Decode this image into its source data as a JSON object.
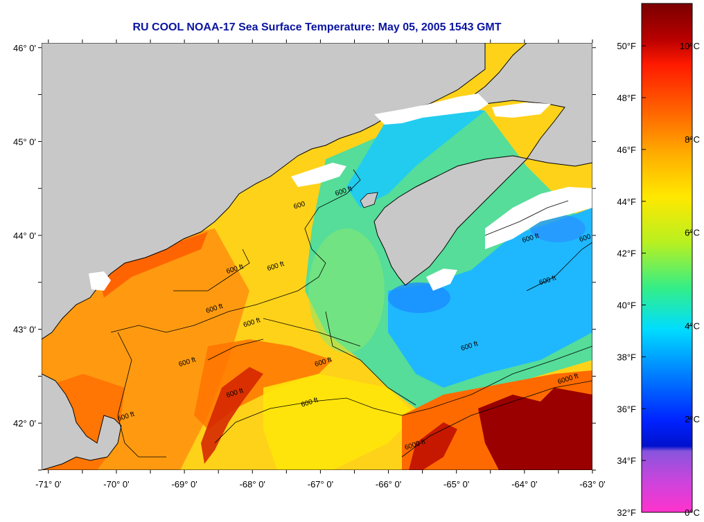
{
  "title": "RU COOL  NOAA-17  Sea Surface Temperature:  May 05, 2005 1543 GMT",
  "map": {
    "lon_range": [
      -71.1,
      -63.0
    ],
    "lat_range": [
      41.5,
      46.05
    ],
    "lon_ticks": [
      {
        "value": -71,
        "label": "-71° 0'"
      },
      {
        "value": -70,
        "label": "-70° 0'"
      },
      {
        "value": -69,
        "label": "-69° 0'"
      },
      {
        "value": -68,
        "label": "-68° 0'"
      },
      {
        "value": -67,
        "label": "-67° 0'"
      },
      {
        "value": -66,
        "label": "-66° 0'"
      },
      {
        "value": -65,
        "label": "-65° 0'"
      },
      {
        "value": -64,
        "label": "-64° 0'"
      },
      {
        "value": -63,
        "label": "-63° 0'"
      }
    ],
    "lat_ticks": [
      {
        "value": 46,
        "label": "46° 0'"
      },
      {
        "value": 45,
        "label": "45° 0'"
      },
      {
        "value": 44,
        "label": "44° 0'"
      },
      {
        "value": 43,
        "label": "43° 0'"
      },
      {
        "value": 42,
        "label": "42° 0'"
      }
    ],
    "contour_labels": [
      {
        "text": "600 ft",
        "lon": -68.25,
        "lat": 43.62
      },
      {
        "text": "600 ft",
        "lon": -68.55,
        "lat": 43.2
      },
      {
        "text": "600 ft",
        "lon": -68.95,
        "lat": 42.63
      },
      {
        "text": "600 ft",
        "lon": -67.65,
        "lat": 43.65
      },
      {
        "text": "600 ft",
        "lon": -68.0,
        "lat": 43.05
      },
      {
        "text": "600 ft",
        "lon": -66.95,
        "lat": 42.63
      },
      {
        "text": "600 ft",
        "lon": -67.15,
        "lat": 42.2
      },
      {
        "text": "600 ft",
        "lon": -66.65,
        "lat": 44.45
      },
      {
        "text": "600 ft",
        "lon": -64.8,
        "lat": 42.8
      },
      {
        "text": "600 ft",
        "lon": -63.65,
        "lat": 43.5
      },
      {
        "text": "600 ft",
        "lon": -63.9,
        "lat": 43.95
      },
      {
        "text": "600",
        "lon": -67.3,
        "lat": 44.3
      },
      {
        "text": "600",
        "lon": -63.1,
        "lat": 43.95
      },
      {
        "text": "600 ft",
        "lon": -68.25,
        "lat": 42.3
      },
      {
        "text": "600 ft",
        "lon": -69.85,
        "lat": 42.05
      },
      {
        "text": "6000 ft",
        "lon": -63.35,
        "lat": 42.45
      },
      {
        "text": "6000 ft",
        "lon": -65.6,
        "lat": 41.75
      }
    ]
  },
  "colorbar": {
    "fahrenheit_labels": [
      {
        "label": "50°F",
        "value_f": 50
      },
      {
        "label": "48°F",
        "value_f": 48
      },
      {
        "label": "46°F",
        "value_f": 46
      },
      {
        "label": "44°F",
        "value_f": 44
      },
      {
        "label": "42°F",
        "value_f": 42
      },
      {
        "label": "40°F",
        "value_f": 40
      },
      {
        "label": "38°F",
        "value_f": 38
      },
      {
        "label": "36°F",
        "value_f": 36
      },
      {
        "label": "34°F",
        "value_f": 34
      },
      {
        "label": "32°F",
        "value_f": 32
      }
    ],
    "celsius_labels": [
      {
        "label": "10°C",
        "value_c": 10
      },
      {
        "label": "8°C",
        "value_c": 8
      },
      {
        "label": "6°C",
        "value_c": 6
      },
      {
        "label": "4°C",
        "value_c": 4
      },
      {
        "label": "2°C",
        "value_c": 2
      },
      {
        "label": "0°C",
        "value_c": 0
      }
    ],
    "colors": {
      "top": "#7a0000",
      "red": "#ff1a00",
      "orange": "#ff9900",
      "yellow": "#ffee00",
      "green": "#33ee88",
      "cyan": "#00ddff",
      "blue": "#0044ff",
      "purple": "#9955dd",
      "magenta": "#ff33cc"
    }
  },
  "colors": {
    "title": "#0a14a0",
    "land": "#c8c8c8",
    "cloud": "#ffffff",
    "coast": "#000000"
  }
}
